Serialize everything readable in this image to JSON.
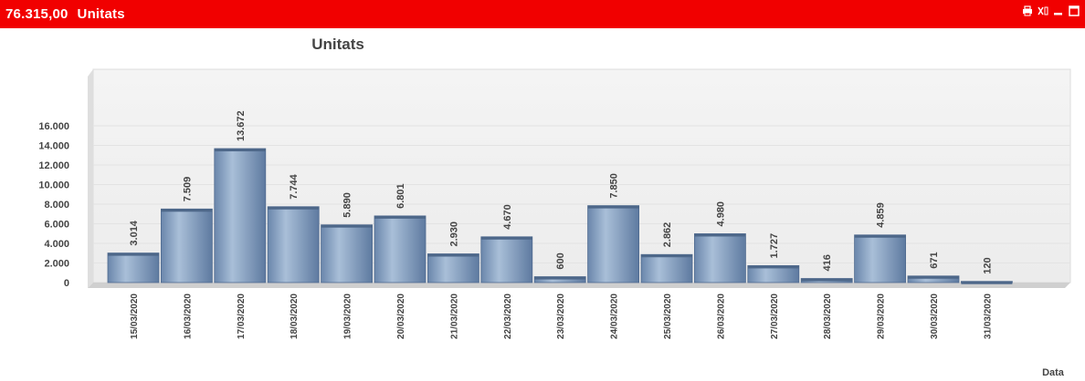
{
  "window": {
    "total": "76.315,00",
    "measure": "Unitats",
    "icons": [
      "print-icon",
      "excel-icon",
      "minimize-icon",
      "maximize-icon"
    ]
  },
  "colors": {
    "titlebar": "#f10000",
    "bar": "#7f9bbd"
  },
  "chart_data": {
    "type": "bar",
    "title": "Unitats",
    "xlabel": "Data",
    "ylabel": "",
    "ylim": [
      0,
      16000
    ],
    "yticks": [
      "0",
      "2.000",
      "4.000",
      "6.000",
      "8.000",
      "10.000",
      "12.000",
      "14.000",
      "16.000"
    ],
    "categories": [
      "15/03/2020",
      "16/03/2020",
      "17/03/2020",
      "18/03/2020",
      "19/03/2020",
      "20/03/2020",
      "21/03/2020",
      "22/03/2020",
      "23/03/2020",
      "24/03/2020",
      "25/03/2020",
      "26/03/2020",
      "27/03/2020",
      "28/03/2020",
      "29/03/2020",
      "30/03/2020",
      "31/03/2020"
    ],
    "values": [
      3014,
      7509,
      13672,
      7744,
      5890,
      6801,
      2930,
      4670,
      600,
      7850,
      2862,
      4980,
      1727,
      416,
      4859,
      671,
      120
    ],
    "value_labels": [
      "3.014",
      "7.509",
      "13.672",
      "7.744",
      "5.890",
      "6.801",
      "2.930",
      "4.670",
      "600",
      "7.850",
      "2.862",
      "4.980",
      "1.727",
      "416",
      "4.859",
      "671",
      "120"
    ],
    "grid": true
  }
}
